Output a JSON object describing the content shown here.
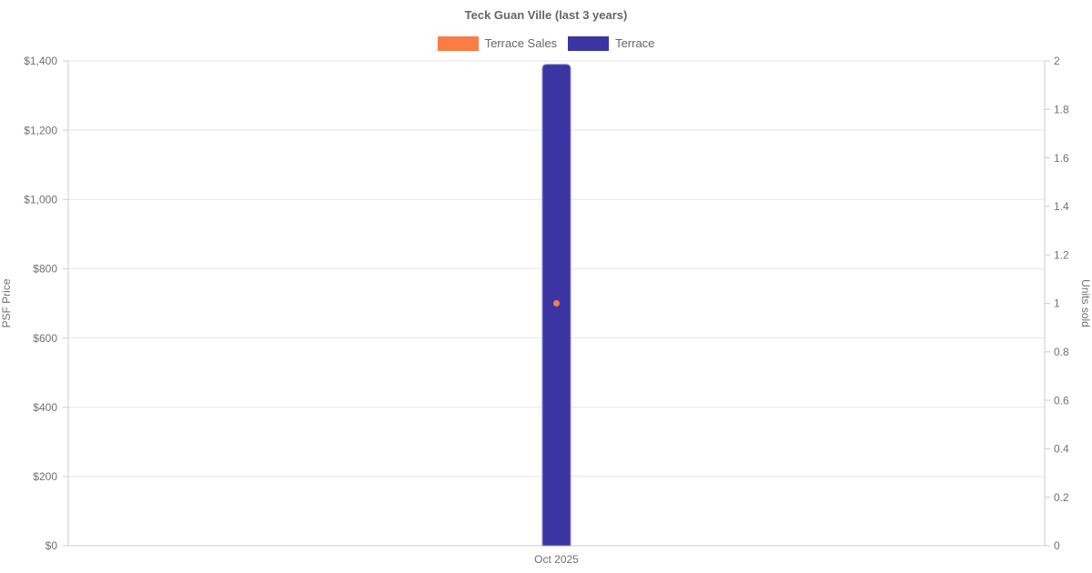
{
  "chart_data": {
    "type": "bar",
    "title": "Teck Guan Ville (last 3 years)",
    "categories": [
      "Oct 2025"
    ],
    "series": [
      {
        "name": "Terrace Sales",
        "type": "scatter",
        "axis": "right",
        "color": "#fa7d45",
        "values": [
          1
        ]
      },
      {
        "name": "Terrace",
        "type": "bar",
        "axis": "left",
        "color": "#3a35a2",
        "values": [
          1390
        ]
      }
    ],
    "legend_position": "top",
    "grid": true,
    "y_left": {
      "label": "PSF Price",
      "min": 0,
      "max": 1400,
      "tick_step": 200,
      "ticks": [
        {
          "v": 0,
          "label": "$0"
        },
        {
          "v": 200,
          "label": "$200"
        },
        {
          "v": 400,
          "label": "$400"
        },
        {
          "v": 600,
          "label": "$600"
        },
        {
          "v": 800,
          "label": "$800"
        },
        {
          "v": 1000,
          "label": "$1,000"
        },
        {
          "v": 1200,
          "label": "$1,200"
        },
        {
          "v": 1400,
          "label": "$1,400"
        }
      ]
    },
    "y_right": {
      "label": "Units sold",
      "min": 0,
      "max": 2,
      "tick_step": 0.2,
      "ticks": [
        {
          "v": 0,
          "label": "0"
        },
        {
          "v": 0.2,
          "label": "0.2"
        },
        {
          "v": 0.4,
          "label": "0.4"
        },
        {
          "v": 0.6,
          "label": "0.6"
        },
        {
          "v": 0.8,
          "label": "0.8"
        },
        {
          "v": 1,
          "label": "1"
        },
        {
          "v": 1.2,
          "label": "1.2"
        },
        {
          "v": 1.4,
          "label": "1.4"
        },
        {
          "v": 1.6,
          "label": "1.6"
        },
        {
          "v": 1.8,
          "label": "1.8"
        },
        {
          "v": 2,
          "label": "2"
        }
      ]
    },
    "x_tick_labels": [
      "Oct 2025"
    ]
  },
  "colors": {
    "grid": "#e6e6e6",
    "axis": "#cccccc",
    "title_text": "#666666",
    "tick_text": "#717171",
    "bar_edge": "#918ed2"
  }
}
